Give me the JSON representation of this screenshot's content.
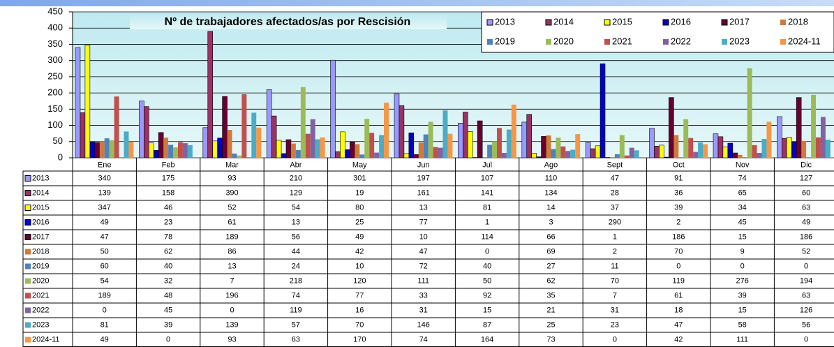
{
  "chart_data": {
    "type": "bar",
    "title": "Nº de trabajadores afectados/as por Rescisión",
    "categories": [
      "Ene",
      "Feb",
      "Mar",
      "Abr",
      "May",
      "Jun",
      "Jul",
      "Ago",
      "Sept",
      "Oct",
      "Nov",
      "Dic"
    ],
    "ylim": [
      0,
      450
    ],
    "yticks": [
      0,
      50,
      100,
      150,
      200,
      250,
      300,
      350,
      400,
      450
    ],
    "grid": true,
    "legend": "top-right",
    "series": [
      {
        "name": "2013",
        "color": "#9999ff",
        "values": [
          340,
          175,
          93,
          210,
          301,
          197,
          107,
          110,
          47,
          91,
          74,
          127
        ]
      },
      {
        "name": "2014",
        "color": "#993366",
        "values": [
          139,
          158,
          390,
          129,
          19,
          161,
          141,
          134,
          28,
          36,
          65,
          60
        ]
      },
      {
        "name": "2015",
        "color": "#ffff00",
        "values": [
          347,
          46,
          52,
          54,
          80,
          13,
          81,
          14,
          37,
          39,
          34,
          63
        ]
      },
      {
        "name": "2016",
        "color": "#0000cc",
        "values": [
          49,
          23,
          61,
          13,
          25,
          77,
          1,
          3,
          290,
          2,
          45,
          49
        ]
      },
      {
        "name": "2017",
        "color": "#660033",
        "values": [
          47,
          78,
          189,
          56,
          49,
          10,
          114,
          66,
          1,
          186,
          15,
          186
        ]
      },
      {
        "name": "2018",
        "color": "#d07a3a",
        "values": [
          50,
          62,
          86,
          44,
          42,
          47,
          0,
          69,
          2,
          70,
          9,
          52
        ]
      },
      {
        "name": "2019",
        "color": "#4f81bd",
        "values": [
          60,
          40,
          13,
          24,
          10,
          72,
          40,
          27,
          11,
          0,
          0,
          0
        ]
      },
      {
        "name": "2020",
        "color": "#9bbb59",
        "values": [
          54,
          32,
          7,
          218,
          120,
          111,
          50,
          62,
          70,
          119,
          276,
          194
        ]
      },
      {
        "name": "2021",
        "color": "#c0504d",
        "values": [
          189,
          48,
          196,
          74,
          77,
          33,
          92,
          35,
          7,
          61,
          39,
          63
        ]
      },
      {
        "name": "2022",
        "color": "#8064a2",
        "values": [
          0,
          45,
          0,
          119,
          16,
          31,
          15,
          21,
          31,
          18,
          15,
          126
        ]
      },
      {
        "name": "2023",
        "color": "#4bacc6",
        "values": [
          81,
          39,
          139,
          57,
          70,
          146,
          87,
          25,
          23,
          47,
          58,
          56
        ]
      },
      {
        "name": "2024-11",
        "color": "#f79646",
        "values": [
          49,
          0,
          93,
          63,
          170,
          74,
          164,
          73,
          0,
          42,
          111,
          0
        ]
      }
    ]
  }
}
